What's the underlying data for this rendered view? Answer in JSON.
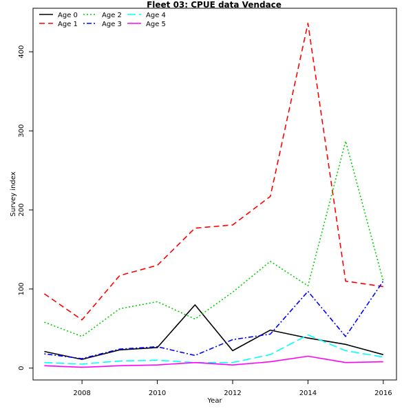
{
  "chart_data": {
    "type": "line",
    "title": "Fleet 03:  CPUE data Vendace",
    "xlabel": "Year",
    "ylabel": "Survey index",
    "x": [
      2007,
      2008,
      2009,
      2010,
      2011,
      2012,
      2013,
      2014,
      2015,
      2016
    ],
    "xlim": [
      2006.7,
      2016.35
    ],
    "ylim": [
      -15,
      455
    ],
    "xticks": [
      2008,
      2010,
      2012,
      2014,
      2016
    ],
    "yticks": [
      0,
      100,
      200,
      300,
      400
    ],
    "grid": false,
    "legend_position": "top-left",
    "series": [
      {
        "name": "Age 0",
        "color": "#000000",
        "dash": "solid",
        "values": [
          21,
          11,
          23,
          26,
          80,
          22,
          48,
          38,
          30,
          17
        ]
      },
      {
        "name": "Age 1",
        "color": "#ff0000",
        "dash": "dashed",
        "values": [
          94,
          61,
          117,
          130,
          177,
          181,
          217,
          436,
          110,
          103
        ]
      },
      {
        "name": "Age 2",
        "color": "#00cd00",
        "dash": "dotted",
        "values": [
          58,
          40,
          75,
          84,
          62,
          96,
          135,
          104,
          287,
          110
        ]
      },
      {
        "name": "Age 3",
        "color": "#0000ff",
        "dash": "dotdash",
        "values": [
          18,
          12,
          24,
          27,
          16,
          36,
          43,
          97,
          40,
          110
        ]
      },
      {
        "name": "Age 4",
        "color": "#00ffff",
        "dash": "longdash",
        "values": [
          7,
          5,
          9,
          10,
          7,
          7,
          17,
          42,
          22,
          14
        ]
      },
      {
        "name": "Age 5",
        "color": "#ff00ff",
        "dash": "solid",
        "values": [
          3,
          1,
          3,
          4,
          7,
          4,
          8,
          15,
          7,
          8
        ]
      }
    ]
  }
}
